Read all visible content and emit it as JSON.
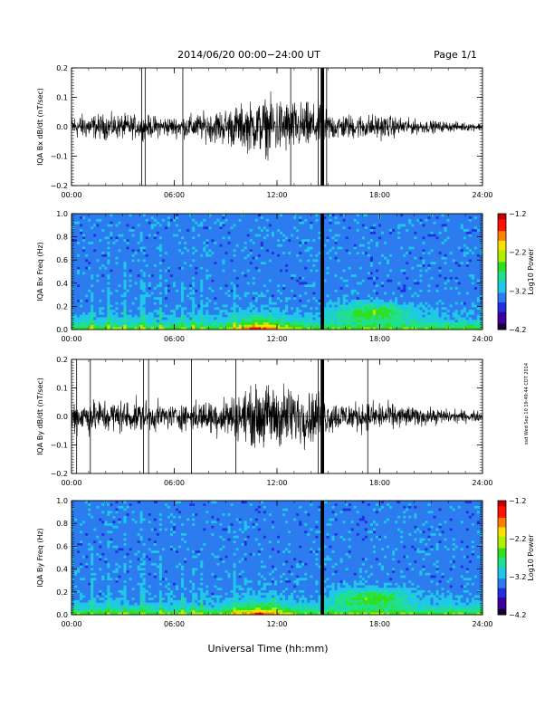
{
  "header": {
    "title": "2014/06/20  00:00−24:00 UT",
    "page": "Page 1/1"
  },
  "footer": {
    "xlabel": "Universal Time (hh:mm)"
  },
  "side_stamp": "ssd Wed Sep 10 19:49:44 CDT 2014",
  "colors": {
    "colorbar": [
      "#1a0033",
      "#3a00a0",
      "#2030e0",
      "#2c7cf0",
      "#20c8e8",
      "#20e090",
      "#30e020",
      "#b0f000",
      "#ffe000",
      "#ff8000",
      "#ff1000",
      "#c00000"
    ]
  },
  "chart_data": [
    {
      "type": "line",
      "ylabel": "IQA Bx dB/dt (nT/sec)",
      "xlim": [
        0,
        24
      ],
      "ylim": [
        -0.2,
        0.2
      ],
      "x_ticks": [
        "00:00",
        "06:00",
        "12:00",
        "18:00",
        "24:00"
      ],
      "y_ticks": [
        "0.2",
        "0.1",
        "0.0",
        "−0.1",
        "−0.2"
      ],
      "gap_hours": [
        14.55,
        14.75
      ],
      "activity_profile": {
        "x": [
          0,
          3,
          6,
          8,
          10,
          11,
          12,
          13,
          14.5,
          15,
          16,
          18,
          20,
          22,
          24
        ],
        "amp": [
          0.05,
          0.05,
          0.04,
          0.06,
          0.09,
          0.11,
          0.12,
          0.1,
          0.09,
          0.06,
          0.05,
          0.05,
          0.03,
          0.02,
          0.015
        ]
      },
      "spikes_hours": [
        4.1,
        4.3,
        6.5,
        12.8,
        14.4,
        14.9
      ]
    },
    {
      "type": "heatmap",
      "ylabel": "IQA Bx Freq (Hz)",
      "xlim": [
        0,
        24
      ],
      "ylim": [
        0,
        1.0
      ],
      "x_ticks": [
        "00:00",
        "06:00",
        "12:00",
        "18:00",
        "24:00"
      ],
      "y_ticks": [
        "1.0",
        "0.8",
        "0.6",
        "0.4",
        "0.2",
        "0.0"
      ],
      "colorbar_label": "Log10 Power",
      "colorbar_ticks": [
        "−1.2",
        "−2.2",
        "−3.2",
        "−4.2"
      ],
      "clim": [
        -4.2,
        -1.2
      ],
      "gap_hours": [
        14.55,
        14.75
      ]
    },
    {
      "type": "line",
      "ylabel": "IQA By dB/dt (nT/sec)",
      "xlim": [
        0,
        24
      ],
      "ylim": [
        -0.2,
        0.2
      ],
      "x_ticks": [
        "00:00",
        "06:00",
        "12:00",
        "18:00",
        "24:00"
      ],
      "y_ticks": [
        "0.2",
        "0.1",
        "0.0",
        "−0.1",
        "−0.2"
      ],
      "gap_hours": [
        14.55,
        14.75
      ],
      "activity_profile": {
        "x": [
          0,
          3,
          6,
          8,
          10,
          11,
          12,
          13,
          14.5,
          15,
          16,
          18,
          20,
          22,
          24
        ],
        "amp": [
          0.07,
          0.07,
          0.05,
          0.07,
          0.1,
          0.13,
          0.14,
          0.12,
          0.1,
          0.07,
          0.06,
          0.06,
          0.04,
          0.03,
          0.02
        ]
      },
      "spikes_hours": [
        0.3,
        1.1,
        4.2,
        4.5,
        7.0,
        9.6,
        14.4,
        17.3
      ]
    },
    {
      "type": "heatmap",
      "ylabel": "IQA By Freq (Hz)",
      "xlim": [
        0,
        24
      ],
      "ylim": [
        0,
        1.0
      ],
      "x_ticks": [
        "00:00",
        "06:00",
        "12:00",
        "18:00",
        "24:00"
      ],
      "y_ticks": [
        "1.0",
        "0.8",
        "0.6",
        "0.4",
        "0.2",
        "0.0"
      ],
      "colorbar_label": "Log10 Power",
      "colorbar_ticks": [
        "−1.2",
        "−2.2",
        "−3.2",
        "−4.2"
      ],
      "clim": [
        -4.2,
        -1.2
      ],
      "gap_hours": [
        14.55,
        14.75
      ]
    }
  ]
}
